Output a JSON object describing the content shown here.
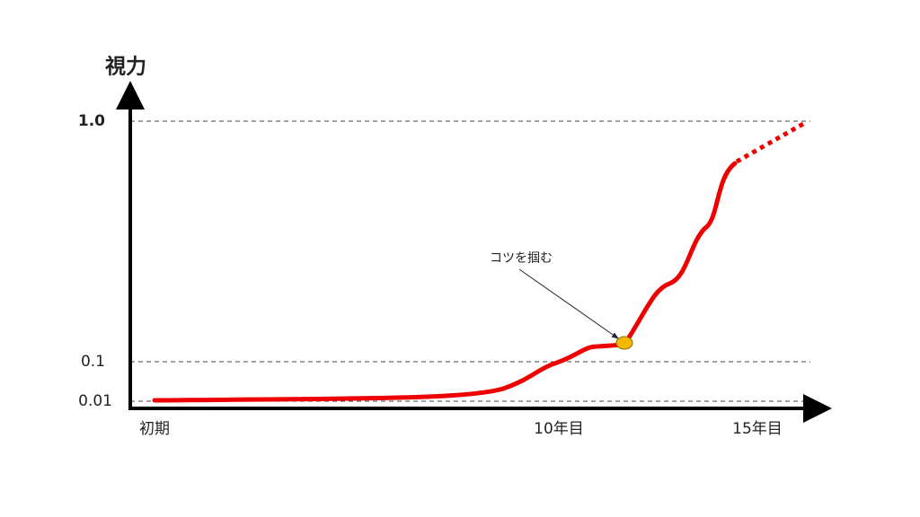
{
  "y_axis": {
    "label": "視力",
    "ticks": [
      "1.0",
      "0.1",
      "0.01"
    ]
  },
  "x_axis": {
    "labels": [
      "初期",
      "10年目",
      "15年目"
    ]
  },
  "annotation": "コツを掴む"
}
